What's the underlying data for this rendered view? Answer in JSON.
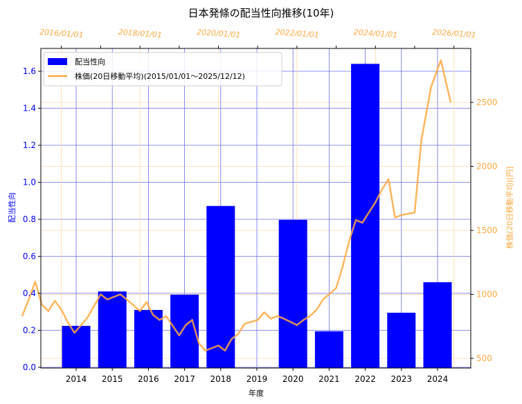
{
  "chart_data": {
    "type": "bar+line",
    "title": "日本発條の配当性向推移(10年)",
    "xlabel": "年度",
    "ylabel": "配当性向",
    "y2label": "株価(20日移動平均)[円]",
    "categories": [
      "2014",
      "2015",
      "2016",
      "2017",
      "2018",
      "2019",
      "2020",
      "2021",
      "2022",
      "2023",
      "2024"
    ],
    "series": [
      {
        "name": "配当性向",
        "type": "bar",
        "color": "#0000ff",
        "axis": "left",
        "values": [
          0.224,
          0.41,
          0.31,
          0.393,
          0.872,
          null,
          0.797,
          0.195,
          1.64,
          0.295,
          0.46
        ]
      },
      {
        "name": "株価(20日移動平均)(2015/01/01〜2025/12/12)",
        "type": "line",
        "color": "#ffa940",
        "axis": "right",
        "x_axis": "top-date",
        "points": [
          [
            "2015/01",
            830
          ],
          [
            "2015/03",
            960
          ],
          [
            "2015/05",
            1100
          ],
          [
            "2015/07",
            920
          ],
          [
            "2015/09",
            870
          ],
          [
            "2015/11",
            950
          ],
          [
            "2016/01",
            880
          ],
          [
            "2016/03",
            780
          ],
          [
            "2016/05",
            700
          ],
          [
            "2016/07",
            760
          ],
          [
            "2016/09",
            820
          ],
          [
            "2017/01",
            1000
          ],
          [
            "2017/03",
            960
          ],
          [
            "2017/05",
            980
          ],
          [
            "2017/07",
            1000
          ],
          [
            "2017/09",
            960
          ],
          [
            "2018/01",
            870
          ],
          [
            "2018/03",
            940
          ],
          [
            "2018/05",
            840
          ],
          [
            "2018/07",
            800
          ],
          [
            "2018/09",
            830
          ],
          [
            "2019/01",
            680
          ],
          [
            "2019/03",
            760
          ],
          [
            "2019/05",
            800
          ],
          [
            "2019/07",
            620
          ],
          [
            "2019/09",
            560
          ],
          [
            "2020/01",
            600
          ],
          [
            "2020/03",
            560
          ],
          [
            "2020/05",
            650
          ],
          [
            "2020/07",
            690
          ],
          [
            "2020/09",
            770
          ],
          [
            "2021/01",
            800
          ],
          [
            "2021/03",
            860
          ],
          [
            "2021/05",
            810
          ],
          [
            "2021/07",
            830
          ],
          [
            "2021/09",
            810
          ],
          [
            "2022/01",
            760
          ],
          [
            "2022/03",
            800
          ],
          [
            "2022/05",
            830
          ],
          [
            "2022/07",
            880
          ],
          [
            "2022/09",
            960
          ],
          [
            "2023/01",
            1050
          ],
          [
            "2023/03",
            1220
          ],
          [
            "2023/05",
            1420
          ],
          [
            "2023/07",
            1580
          ],
          [
            "2023/09",
            1560
          ],
          [
            "2024/01",
            1720
          ],
          [
            "2024/03",
            1820
          ],
          [
            "2024/05",
            1900
          ],
          [
            "2024/07",
            1600
          ],
          [
            "2024/09",
            1620
          ],
          [
            "2025/01",
            1640
          ],
          [
            "2025/03",
            2200
          ],
          [
            "2025/06",
            2620
          ],
          [
            "2025/09",
            2830
          ],
          [
            "2025/12",
            2500
          ]
        ]
      }
    ],
    "ylim": [
      0.0,
      1.72
    ],
    "y2lim": [
      430,
      2920
    ],
    "yticks": [
      "0.0",
      "0.2",
      "0.4",
      "0.6",
      "0.8",
      "1.0",
      "1.2",
      "1.4",
      "1.6"
    ],
    "y2ticks": [
      "500",
      "1000",
      "1500",
      "2000",
      "2500"
    ],
    "top_xticks": [
      "2016/01/01",
      "2018/01/01",
      "2020/01/01",
      "2022/01/01",
      "2024/01/01",
      "2026/01/01"
    ],
    "grid": true,
    "legend_position": "upper left"
  },
  "labels": {
    "title": "日本発條の配当性向推移(10年)",
    "xlabel": "年度",
    "ylabel": "配当性向",
    "y2label": "株価(20日移動平均)[円]",
    "legend_bar": "配当性向",
    "legend_line": "株価(20日移動平均)(2015/01/01〜2025/12/12)"
  },
  "colors": {
    "bar": "#0000ff",
    "line": "#ffa940",
    "grid_left": "#6b6bf0",
    "grid_right": "#ffd9a8"
  }
}
